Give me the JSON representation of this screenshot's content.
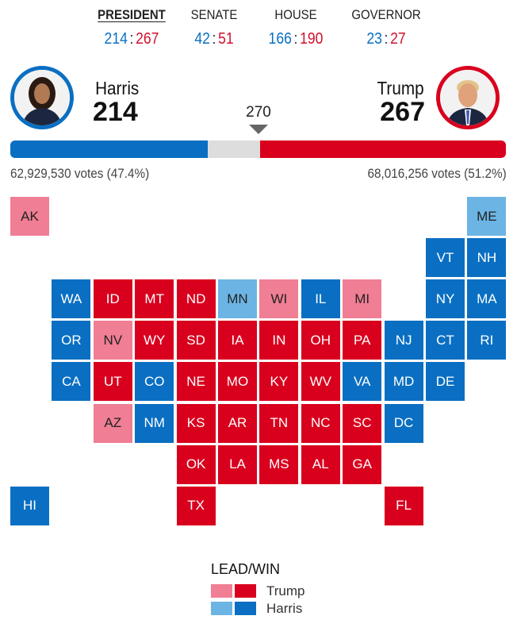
{
  "colors": {
    "harris_win": "#0a6fc2",
    "harris_lead": "#6cb4e4",
    "trump_win": "#d9001e",
    "trump_lead": "#f07e94",
    "undecided": "#dddddd"
  },
  "tabs": [
    {
      "label": "PRESIDENT",
      "dem": "214",
      "rep": "267",
      "active": true
    },
    {
      "label": "SENATE",
      "dem": "42",
      "rep": "51"
    },
    {
      "label": "HOUSE",
      "dem": "166",
      "rep": "190"
    },
    {
      "label": "GOVERNOR",
      "dem": "23",
      "rep": "27"
    }
  ],
  "score_separator": ":",
  "harris": {
    "name": "Harris",
    "ev": "214",
    "votes": "62,929,530 votes (47.4%)",
    "photo": "harris-portrait"
  },
  "trump": {
    "name": "Trump",
    "ev": "267",
    "votes": "68,016,256 votes (51.2%)",
    "photo": "trump-portrait"
  },
  "threshold": "270",
  "bar": {
    "total": 538,
    "harris": 214,
    "trump": 267,
    "threshold": 270
  },
  "states": {
    "AK": "trump_lead",
    "ME": "harris_lead",
    "VT": "harris_win",
    "NH": "harris_win",
    "WA": "harris_win",
    "ID": "trump_win",
    "MT": "trump_win",
    "ND": "trump_win",
    "MN": "harris_lead",
    "WI": "trump_lead",
    "IL": "harris_win",
    "MI": "trump_lead",
    "NY": "harris_win",
    "MA": "harris_win",
    "OR": "harris_win",
    "NV": "trump_lead",
    "WY": "trump_win",
    "SD": "trump_win",
    "IA": "trump_win",
    "IN": "trump_win",
    "OH": "trump_win",
    "PA": "trump_win",
    "NJ": "harris_win",
    "CT": "harris_win",
    "RI": "harris_win",
    "CA": "harris_win",
    "UT": "trump_win",
    "CO": "harris_win",
    "NE": "trump_win",
    "MO": "trump_win",
    "KY": "trump_win",
    "WV": "trump_win",
    "VA": "harris_win",
    "MD": "harris_win",
    "DE": "harris_win",
    "AZ": "trump_lead",
    "NM": "harris_win",
    "KS": "trump_win",
    "AR": "trump_win",
    "TN": "trump_win",
    "NC": "trump_win",
    "SC": "trump_win",
    "DC": "harris_win",
    "OK": "trump_win",
    "LA": "trump_win",
    "MS": "trump_win",
    "AL": "trump_win",
    "GA": "trump_win",
    "HI": "harris_win",
    "TX": "trump_win",
    "FL": "trump_win"
  },
  "legend": {
    "title": "LEAD/WIN",
    "items": [
      {
        "label": "Trump"
      },
      {
        "label": "Harris"
      }
    ]
  }
}
